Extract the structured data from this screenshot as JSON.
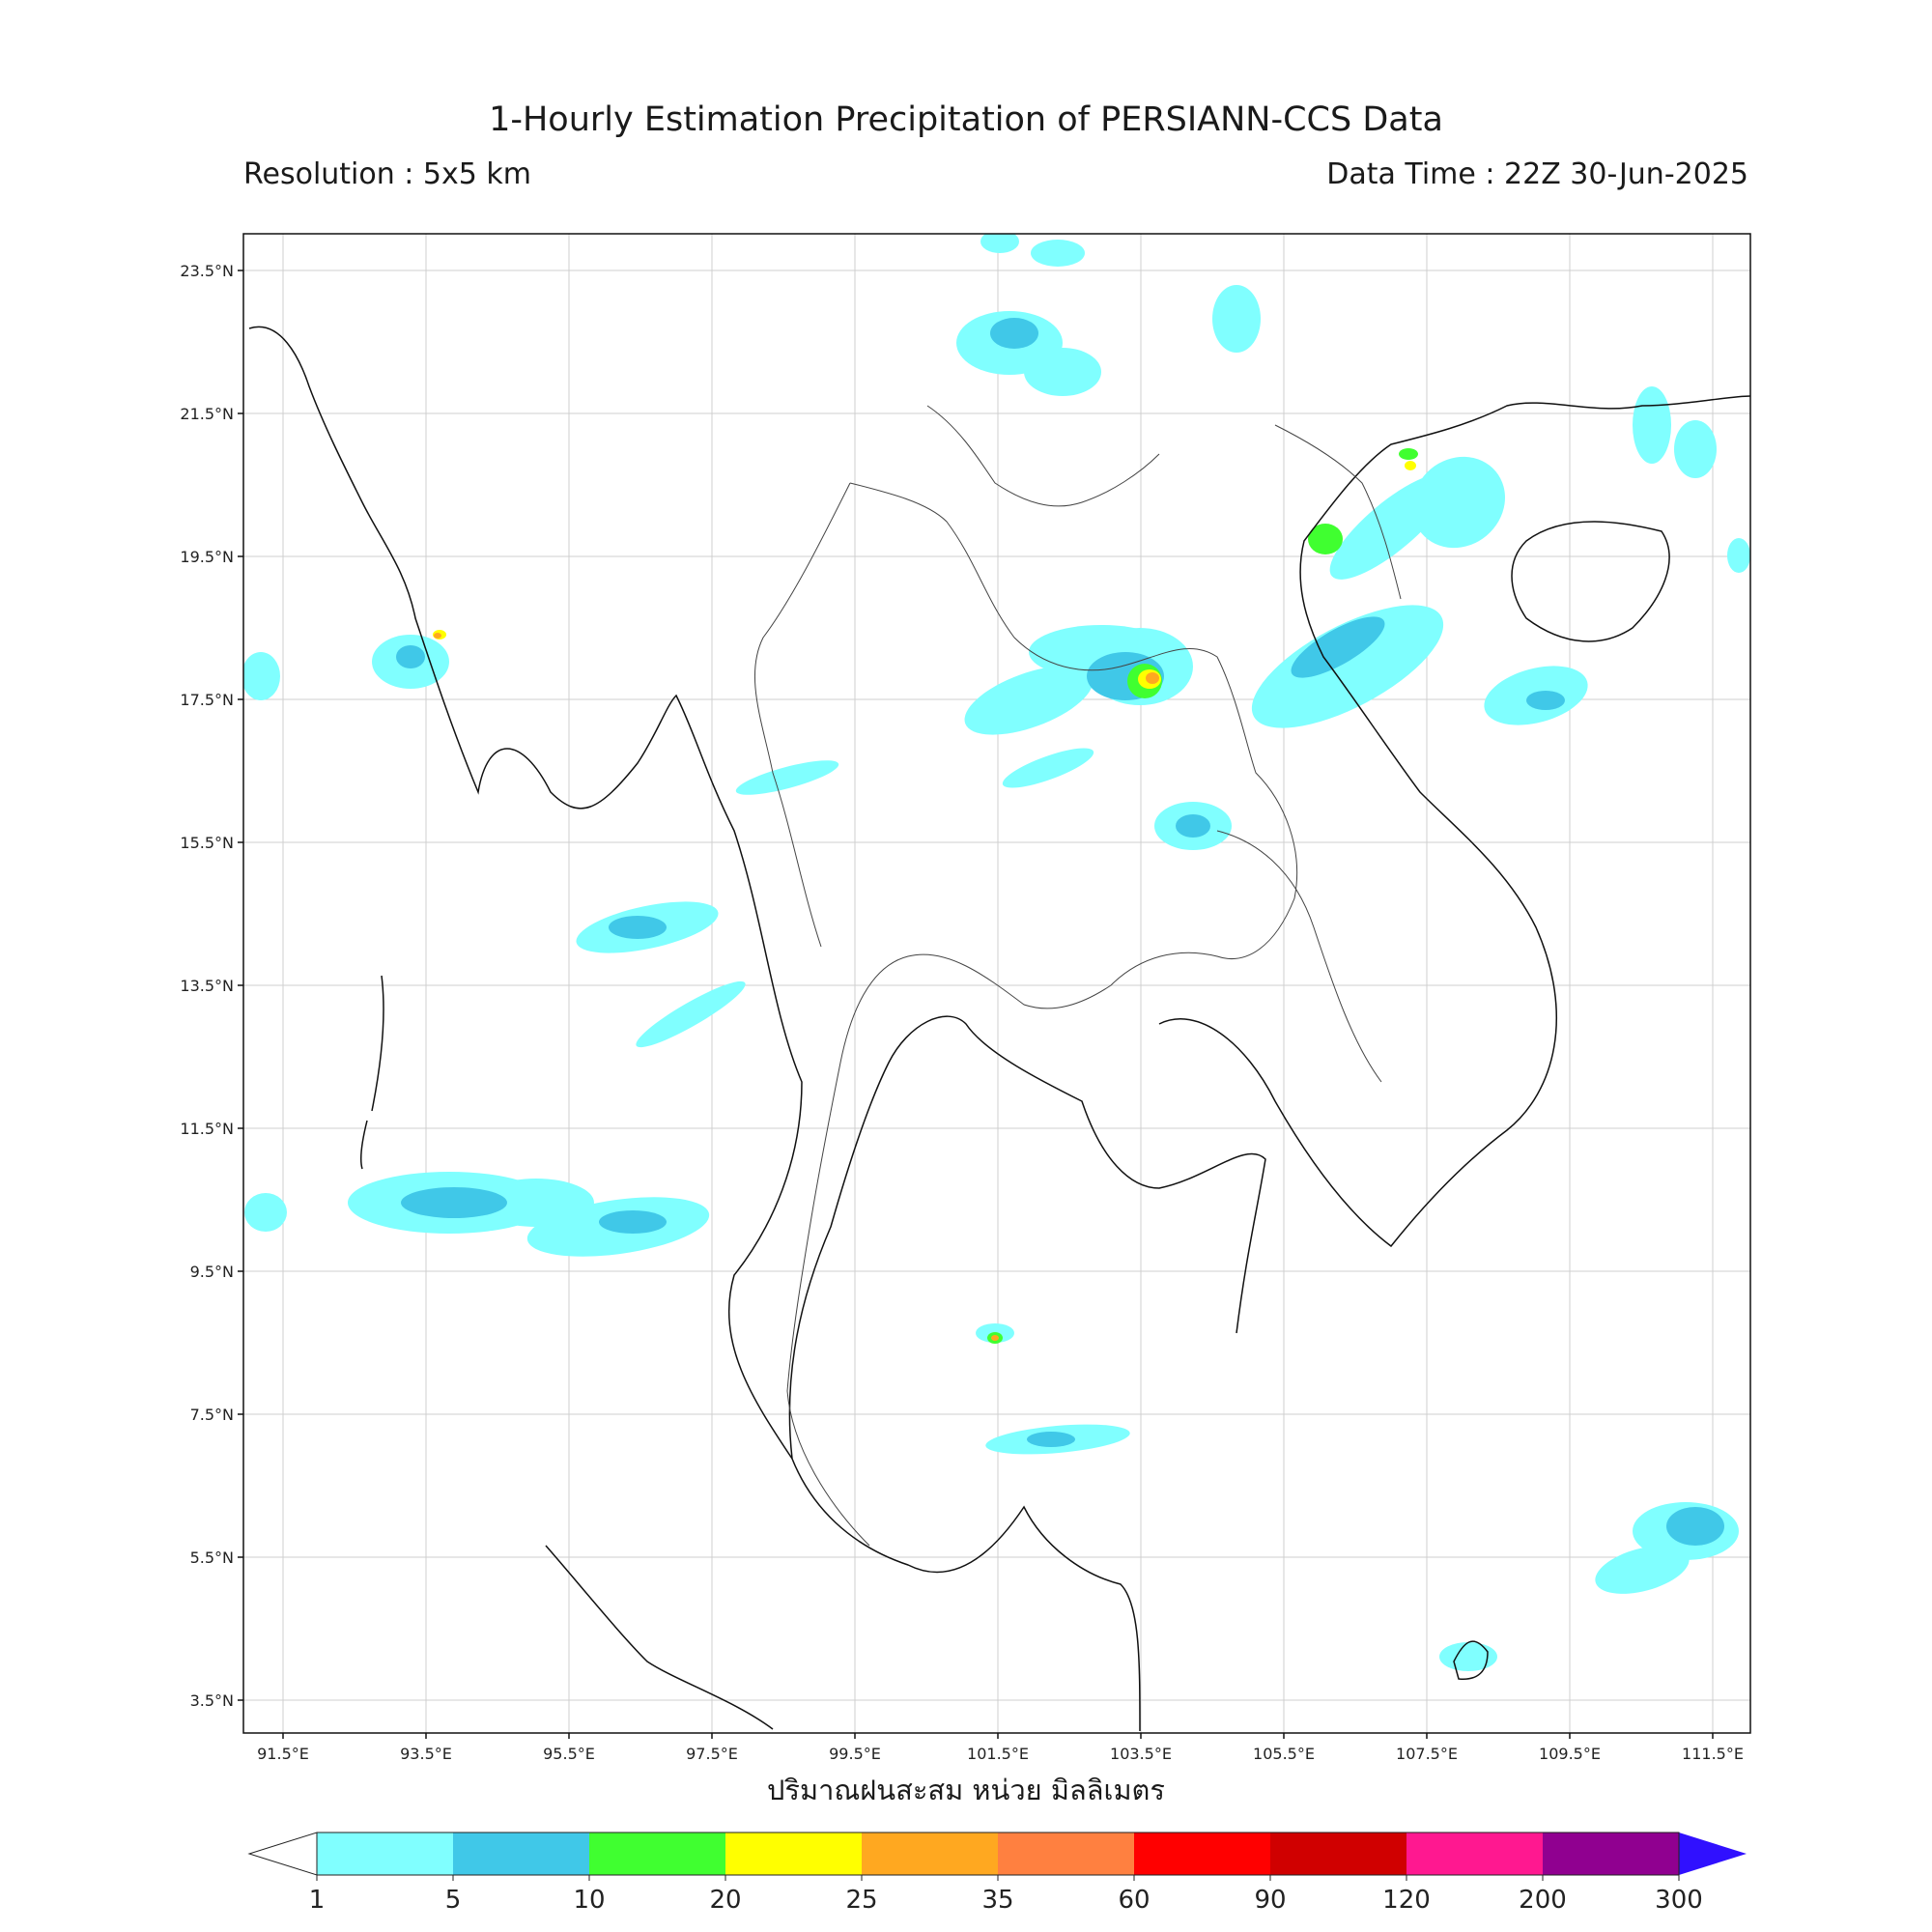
{
  "title": "1-Hourly Estimation Precipitation of PERSIANN-CCS Data",
  "resolution": "Resolution : 5x5 km",
  "data_time": "Data Time : 22Z 30-Jun-2025",
  "xlabel": "ปริมาณฝนสะสม หน่วย มิลลิเมตร",
  "lat_ticks": [
    "23.5°N",
    "21.5°N",
    "19.5°N",
    "17.5°N",
    "15.5°N",
    "13.5°N",
    "11.5°N",
    "9.5°N",
    "7.5°N",
    "5.5°N",
    "3.5°N"
  ],
  "lon_ticks": [
    "91.5°E",
    "93.5°E",
    "95.5°E",
    "97.5°E",
    "99.5°E",
    "101.5°E",
    "103.5°E",
    "105.5°E",
    "107.5°E",
    "109.5°E",
    "111.5°E"
  ],
  "colorbar": {
    "labels": [
      "1",
      "5",
      "10",
      "20",
      "25",
      "35",
      "60",
      "90",
      "120",
      "200",
      "300"
    ],
    "colors": [
      "#80ffff",
      "#40c8e8",
      "#40ff30",
      "#ffff00",
      "#ffa820",
      "#ff8040",
      "#ff0000",
      "#d00000",
      "#ff1890",
      "#900090"
    ],
    "over_color": "#3010ff",
    "under_color": "#ffffff"
  }
}
